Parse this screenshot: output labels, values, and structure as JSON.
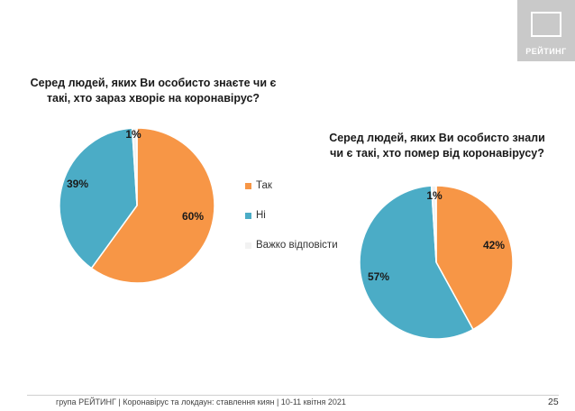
{
  "logo": {
    "text": "РЕЙТИНГ"
  },
  "colors": {
    "yes": "#f79646",
    "no": "#4bacc6",
    "hard": "#f2f2f2"
  },
  "chart_data": [
    {
      "type": "pie",
      "title": "Серед людей, яких Ви особисто знаєте чи є такі, хто зараз хворіє на коронавірус?",
      "categories": [
        "Так",
        "Ні",
        "Важко відповісти"
      ],
      "values": [
        60,
        39,
        1
      ],
      "labels": [
        "60%",
        "39%",
        "1%"
      ]
    },
    {
      "type": "pie",
      "title": "Серед людей, яких Ви особисто знали чи є такі, хто помер від коронавірусу?",
      "categories": [
        "Так",
        "Ні",
        "Важко відповісти"
      ],
      "values": [
        42,
        57,
        1
      ],
      "labels": [
        "42%",
        "57%",
        "1%"
      ]
    }
  ],
  "legend": [
    "Так",
    "Ні",
    "Важко відповісти"
  ],
  "footer": {
    "text": "група РЕЙТИНГ | Коронавірус та локдаун: ставлення киян | 10-11 квітня 2021",
    "page": "25"
  }
}
